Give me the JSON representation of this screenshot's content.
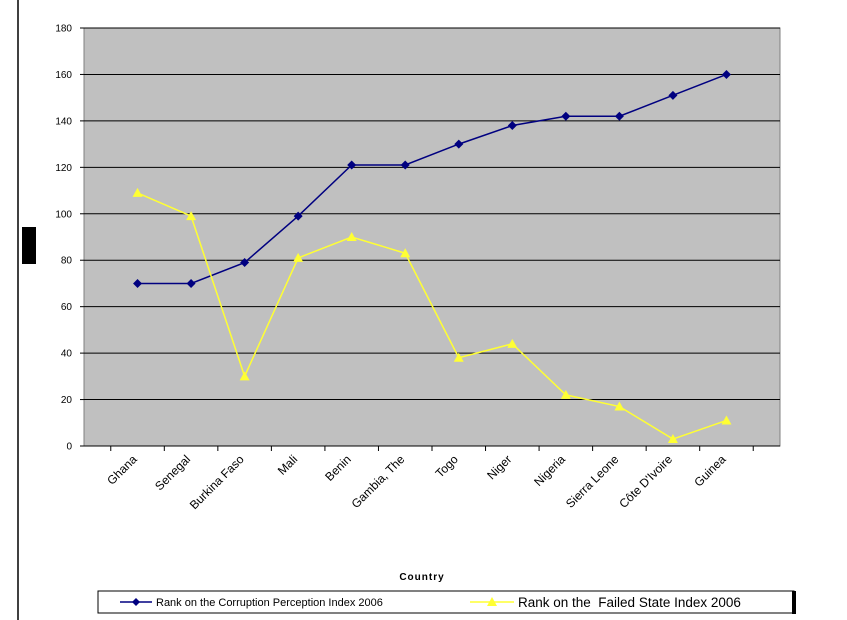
{
  "chart_data": {
    "type": "line",
    "xlabel": "Country",
    "ylabel": "",
    "ylim": [
      0,
      180
    ],
    "yticks": [
      0,
      20,
      40,
      60,
      80,
      100,
      120,
      140,
      160,
      180
    ],
    "grid": true,
    "legend_position": "bottom",
    "categories": [
      "Ghana",
      "Senegal",
      "Burkina Faso",
      "Mali",
      "Benin",
      "Gambia, The",
      "Togo",
      "Niger",
      "Nigeria",
      "Sierra Leone",
      "Côte D'Ivoire",
      "Guinea"
    ],
    "series": [
      {
        "name": "Rank on the Corruption Perception Index 2006",
        "color": "#000080",
        "marker": "diamond",
        "values": [
          70,
          70,
          79,
          99,
          121,
          121,
          130,
          138,
          142,
          142,
          151,
          160
        ]
      },
      {
        "name": "Rank on the  Failed State Index 2006",
        "color": "#ffff33",
        "marker": "triangle",
        "values": [
          109,
          99,
          30,
          81,
          90,
          83,
          38,
          44,
          22,
          17,
          3,
          11
        ]
      }
    ],
    "colors": {
      "plot_background": "#c0c0c0",
      "gridline": "#000000"
    }
  }
}
